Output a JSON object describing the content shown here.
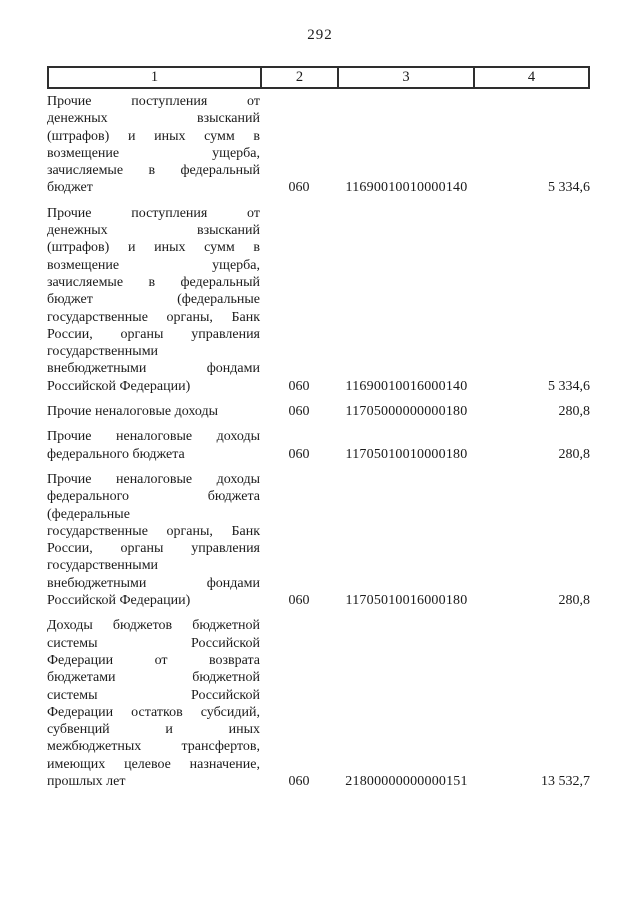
{
  "page_number": "292",
  "table": {
    "columns": [
      "1",
      "2",
      "3",
      "4"
    ],
    "rows": [
      {
        "name_lines": [
          "Прочие поступления от",
          "денежных взысканий",
          "(штрафов) и иных сумм в",
          "возмещение ущерба,",
          "зачисляемые в федеральный",
          "бюджет"
        ],
        "chapter_code": "060",
        "classification_code": "11690010010000140",
        "amount": "5 334,6"
      },
      {
        "name_lines": [
          "Прочие поступления от",
          "денежных взысканий",
          "(штрафов) и иных сумм в",
          "возмещение ущерба,",
          "зачисляемые в федеральный",
          "бюджет (федеральные",
          "государственные органы, Банк",
          "России, органы управления",
          "государственными",
          "внебюджетными фондами",
          "Российской Федерации)"
        ],
        "chapter_code": "060",
        "classification_code": "11690010016000140",
        "amount": "5 334,6"
      },
      {
        "name_lines": [
          "Прочие неналоговые доходы"
        ],
        "chapter_code": "060",
        "classification_code": "11705000000000180",
        "amount": "280,8"
      },
      {
        "name_lines": [
          "Прочие неналоговые доходы",
          "федерального бюджета"
        ],
        "chapter_code": "060",
        "classification_code": "11705010010000180",
        "amount": "280,8"
      },
      {
        "name_lines": [
          "Прочие неналоговые доходы",
          "федерального бюджета",
          "(федеральные",
          "государственные органы, Банк",
          "России, органы управления",
          "государственными",
          "внебюджетными фондами",
          "Российской Федерации)"
        ],
        "chapter_code": "060",
        "classification_code": "11705010016000180",
        "amount": "280,8"
      },
      {
        "name_lines": [
          "Доходы бюджетов бюджетной",
          "системы Российской",
          "Федерации от возврата",
          "бюджетами бюджетной",
          "системы Российской",
          "Федерации остатков субсидий,",
          "субвенций и иных",
          "межбюджетных трансфертов,",
          "имеющих целевое назначение,",
          "прошлых лет"
        ],
        "chapter_code": "060",
        "classification_code": "21800000000000151",
        "amount": "13 532,7"
      }
    ]
  }
}
